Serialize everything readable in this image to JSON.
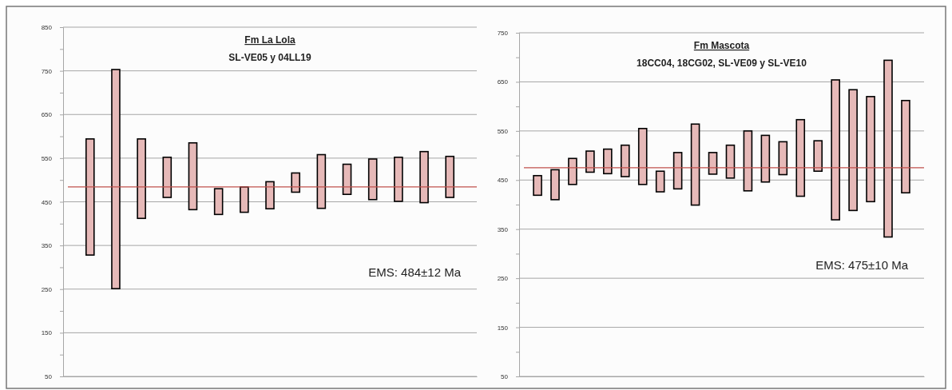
{
  "chart_data": [
    {
      "type": "bar",
      "title": "Fm La Lola",
      "subtitle": "SL-VE05 y 04LL19",
      "categories": [
        null,
        null,
        null,
        null,
        null,
        null,
        null,
        null,
        null,
        null,
        null,
        null,
        null,
        null,
        null
      ],
      "base": [
        328,
        251,
        412,
        460,
        432,
        421,
        426,
        434,
        472,
        435,
        467,
        455,
        451,
        448,
        460
      ],
      "values": [
        266,
        502,
        182,
        92,
        153,
        59,
        58,
        62,
        44,
        123,
        69,
        93,
        101,
        117,
        94
      ],
      "color": "#e6b9b8",
      "ylim": [
        50,
        850
      ],
      "yticks": [
        50,
        {
          "value": 100,
          "label": null
        },
        150,
        {
          "value": 200,
          "label": null
        },
        250,
        {
          "value": 300,
          "label": null
        },
        350,
        {
          "value": 400,
          "label": null
        },
        450,
        {
          "value": 500,
          "label": null
        },
        550,
        {
          "value": 600,
          "label": null
        },
        650,
        {
          "value": 700,
          "label": null
        },
        750,
        {
          "value": 800,
          "label": null
        },
        850
      ],
      "grid": "y",
      "tick_labels": "y",
      "ref_lines": [
        {
          "axis": "y",
          "value": 484,
          "color": "#c0504d"
        }
      ],
      "annotations": [
        "EMS: 484±12 Ma"
      ]
    },
    {
      "type": "bar",
      "title": "Fm Mascota",
      "subtitle": "18CC04, 18CG02, SL-VE09 y SL-VE10",
      "categories": [
        null,
        null,
        null,
        null,
        null,
        null,
        null,
        null,
        null,
        null,
        null,
        null,
        null,
        null,
        null,
        null,
        null,
        null,
        null,
        null,
        null,
        null
      ],
      "base": [
        419,
        410,
        441,
        466,
        463,
        457,
        441,
        426,
        432,
        399,
        462,
        454,
        428,
        446,
        461,
        417,
        468,
        369,
        388,
        406,
        334,
        424
      ],
      "values": [
        40,
        61,
        53,
        43,
        50,
        64,
        114,
        42,
        74,
        165,
        44,
        67,
        122,
        95,
        67,
        156,
        62,
        285,
        246,
        214,
        360,
        188
      ],
      "color": "#e6b9b8",
      "ylim": [
        50,
        750
      ],
      "yticks": [
        50,
        {
          "value": 100,
          "label": null
        },
        150,
        {
          "value": 200,
          "label": null
        },
        250,
        {
          "value": 300,
          "label": null
        },
        350,
        {
          "value": 400,
          "label": null
        },
        450,
        {
          "value": 500,
          "label": null
        },
        550,
        {
          "value": 600,
          "label": null
        },
        650,
        {
          "value": 700,
          "label": null
        },
        750
      ],
      "grid": "y",
      "tick_labels": "y",
      "ref_lines": [
        {
          "axis": "y",
          "value": 475,
          "color": "#c0504d"
        }
      ],
      "annotations": [
        "EMS: 475±10 Ma"
      ]
    }
  ]
}
